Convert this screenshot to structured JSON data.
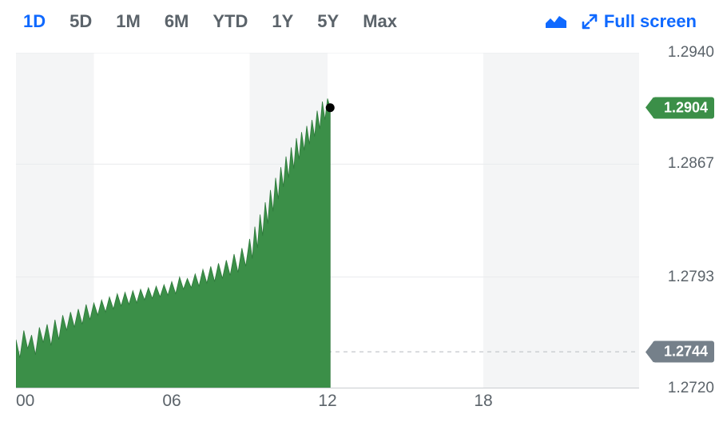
{
  "toolbar": {
    "ranges": [
      {
        "label": "1D",
        "active": true
      },
      {
        "label": "5D",
        "active": false
      },
      {
        "label": "1M",
        "active": false
      },
      {
        "label": "6M",
        "active": false
      },
      {
        "label": "YTD",
        "active": false
      },
      {
        "label": "1Y",
        "active": false
      },
      {
        "label": "5Y",
        "active": false
      },
      {
        "label": "Max",
        "active": false
      }
    ],
    "fullscreen_label": "Full screen",
    "accent_color": "#0f69ff",
    "inactive_color": "#5b636a"
  },
  "chart": {
    "type": "area",
    "fill_color": "#3b8f48",
    "stroke_color": "#2f7a3c",
    "background_color": "#ffffff",
    "band_color": "#f4f5f6",
    "grid_color": "#e9ebed",
    "dashed_color": "#c9ccd0",
    "marker_color": "#000000",
    "ylim": [
      1.272,
      1.294
    ],
    "y_ticks": [
      1.272,
      1.2793,
      1.2867,
      1.294
    ],
    "x_domain_hours": [
      0,
      24
    ],
    "x_ticks": [
      {
        "h": 0,
        "label": "00"
      },
      {
        "h": 6,
        "label": "06"
      },
      {
        "h": 12,
        "label": "12"
      },
      {
        "h": 18,
        "label": "18"
      }
    ],
    "bands": [
      [
        0,
        3
      ],
      [
        9,
        12
      ],
      [
        18,
        24
      ]
    ],
    "current_tag": {
      "value": "1.2904",
      "bg": "#3b8f48"
    },
    "ref_tag": {
      "value": "1.2744",
      "bg": "#75808a",
      "y": 1.2744
    },
    "last_point": {
      "h": 12.1,
      "y": 1.2904
    },
    "series": [
      [
        0.0,
        1.2752
      ],
      [
        0.15,
        1.274
      ],
      [
        0.3,
        1.2758
      ],
      [
        0.45,
        1.2746
      ],
      [
        0.6,
        1.2755
      ],
      [
        0.75,
        1.2742
      ],
      [
        0.9,
        1.276
      ],
      [
        1.05,
        1.275
      ],
      [
        1.2,
        1.2762
      ],
      [
        1.35,
        1.2748
      ],
      [
        1.5,
        1.2765
      ],
      [
        1.65,
        1.2752
      ],
      [
        1.8,
        1.2768
      ],
      [
        1.95,
        1.2758
      ],
      [
        2.1,
        1.277
      ],
      [
        2.25,
        1.276
      ],
      [
        2.4,
        1.2772
      ],
      [
        2.55,
        1.2762
      ],
      [
        2.7,
        1.2775
      ],
      [
        2.85,
        1.2765
      ],
      [
        3.0,
        1.2776
      ],
      [
        3.15,
        1.2768
      ],
      [
        3.3,
        1.2778
      ],
      [
        3.45,
        1.277
      ],
      [
        3.6,
        1.278
      ],
      [
        3.75,
        1.2772
      ],
      [
        3.9,
        1.2782
      ],
      [
        4.05,
        1.2774
      ],
      [
        4.2,
        1.2783
      ],
      [
        4.35,
        1.2775
      ],
      [
        4.5,
        1.2784
      ],
      [
        4.65,
        1.2776
      ],
      [
        4.8,
        1.2785
      ],
      [
        4.95,
        1.2778
      ],
      [
        5.1,
        1.2786
      ],
      [
        5.25,
        1.2779
      ],
      [
        5.4,
        1.2787
      ],
      [
        5.55,
        1.278
      ],
      [
        5.7,
        1.2788
      ],
      [
        5.85,
        1.2781
      ],
      [
        6.0,
        1.279
      ],
      [
        6.15,
        1.2782
      ],
      [
        6.3,
        1.2793
      ],
      [
        6.45,
        1.2785
      ],
      [
        6.6,
        1.2792
      ],
      [
        6.75,
        1.2786
      ],
      [
        6.9,
        1.2795
      ],
      [
        7.05,
        1.2787
      ],
      [
        7.2,
        1.2798
      ],
      [
        7.35,
        1.2789
      ],
      [
        7.5,
        1.28
      ],
      [
        7.65,
        1.279
      ],
      [
        7.8,
        1.2802
      ],
      [
        7.95,
        1.2792
      ],
      [
        8.1,
        1.2804
      ],
      [
        8.25,
        1.2794
      ],
      [
        8.4,
        1.2808
      ],
      [
        8.55,
        1.2796
      ],
      [
        8.7,
        1.2812
      ],
      [
        8.85,
        1.28
      ],
      [
        9.0,
        1.2818
      ],
      [
        9.1,
        1.2805
      ],
      [
        9.2,
        1.2826
      ],
      [
        9.3,
        1.2812
      ],
      [
        9.4,
        1.2834
      ],
      [
        9.5,
        1.282
      ],
      [
        9.6,
        1.2842
      ],
      [
        9.7,
        1.2828
      ],
      [
        9.8,
        1.285
      ],
      [
        9.9,
        1.2836
      ],
      [
        10.0,
        1.2858
      ],
      [
        10.1,
        1.2844
      ],
      [
        10.2,
        1.2865
      ],
      [
        10.3,
        1.2852
      ],
      [
        10.4,
        1.2872
      ],
      [
        10.5,
        1.2858
      ],
      [
        10.6,
        1.2878
      ],
      [
        10.7,
        1.2864
      ],
      [
        10.8,
        1.2884
      ],
      [
        10.9,
        1.287
      ],
      [
        11.0,
        1.2888
      ],
      [
        11.1,
        1.2876
      ],
      [
        11.2,
        1.2892
      ],
      [
        11.3,
        1.288
      ],
      [
        11.4,
        1.2896
      ],
      [
        11.5,
        1.2885
      ],
      [
        11.6,
        1.2902
      ],
      [
        11.7,
        1.289
      ],
      [
        11.8,
        1.2908
      ],
      [
        11.9,
        1.2896
      ],
      [
        12.0,
        1.291
      ],
      [
        12.1,
        1.2904
      ]
    ]
  }
}
